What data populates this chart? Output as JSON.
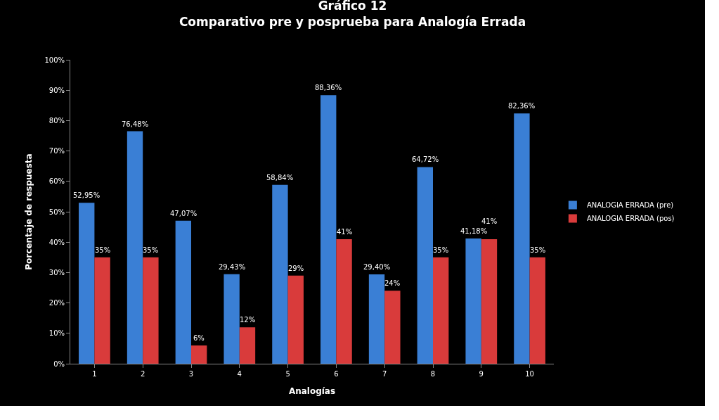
{
  "chart_data": {
    "type": "bar",
    "title": "Gráfico 12\nComparativo pre y posprueba para Analogía Errada",
    "xlabel": "Analogías",
    "ylabel": "Porcentaje de respuesta",
    "categories": [
      "1",
      "2",
      "3",
      "4",
      "5",
      "6",
      "7",
      "8",
      "9",
      "10"
    ],
    "series": [
      {
        "name": "ANALOGIA ERRADA (pre)",
        "color": "#3a7fd5",
        "values": [
          52.95,
          76.48,
          47.07,
          29.43,
          58.84,
          88.36,
          29.4,
          64.72,
          41.18,
          82.36
        ],
        "value_labels": [
          "52,95%",
          "76,48%",
          "47,07%",
          "29,43%",
          "58,84%",
          "88,36%",
          "29,40%",
          "64,72%",
          "41,18%",
          "82,36%"
        ]
      },
      {
        "name": "ANALOGIA ERRADA (pos)",
        "color": "#d93b3b",
        "values": [
          35,
          35,
          6,
          12,
          29,
          41,
          24,
          35,
          41,
          35
        ],
        "value_labels": [
          "35%",
          "35%",
          "6%",
          "12%",
          "29%",
          "41%",
          "24%",
          "35%",
          "41%",
          "35%"
        ]
      }
    ],
    "ylim": [
      0,
      100
    ],
    "yticks": [
      {
        "value": 0,
        "label": "0%"
      },
      {
        "value": 10,
        "label": "10%"
      },
      {
        "value": 20,
        "label": "20%"
      },
      {
        "value": 30,
        "label": "30%"
      },
      {
        "value": 40,
        "label": "40%"
      },
      {
        "value": 50,
        "label": "50%"
      },
      {
        "value": 60,
        "label": "60%"
      },
      {
        "value": 70,
        "label": "70%"
      },
      {
        "value": 80,
        "label": "80%"
      },
      {
        "value": 90,
        "label": "90%"
      },
      {
        "value": 100,
        "label": "100%"
      }
    ],
    "grid": false,
    "legend": "right"
  }
}
